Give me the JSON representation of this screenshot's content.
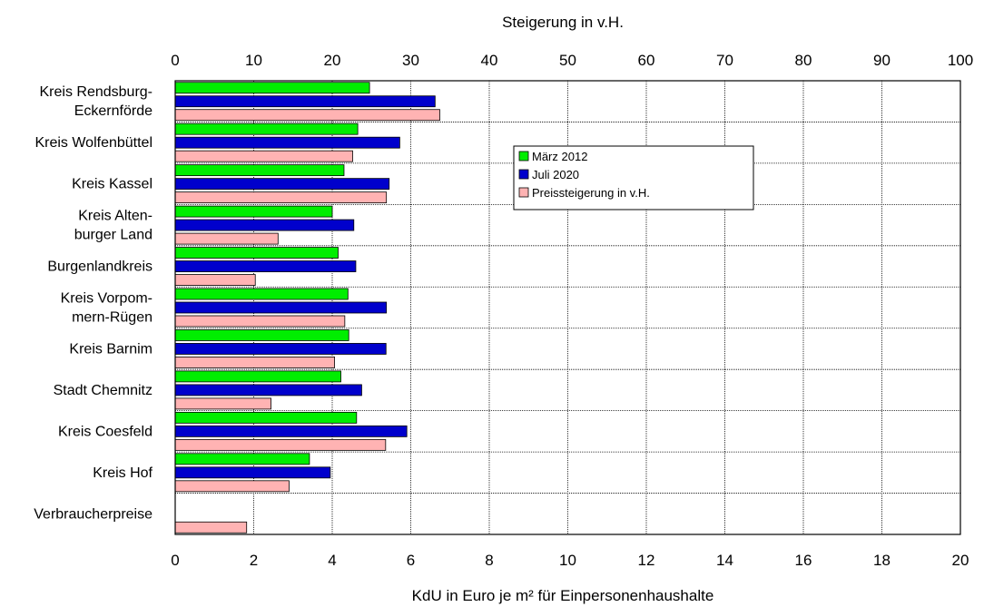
{
  "chart_data": {
    "type": "bar",
    "orientation": "horizontal",
    "top_axis_title": "Steigerung in v.H.",
    "bottom_axis_title": "KdU in Euro je m² für Einpersonenhaushalte",
    "top_axis": {
      "range": [
        0,
        100
      ],
      "ticks": [
        0,
        10,
        20,
        30,
        40,
        50,
        60,
        70,
        80,
        90,
        100
      ]
    },
    "bottom_axis": {
      "range": [
        0,
        20
      ],
      "ticks": [
        0,
        2,
        4,
        6,
        8,
        10,
        12,
        14,
        16,
        18,
        20
      ]
    },
    "grid": true,
    "legend_position": "upper-center",
    "categories": [
      [
        "Kreis Rendsburg-",
        "Eckernförde"
      ],
      [
        "Kreis Wolfenbüttel"
      ],
      [
        "Kreis Kassel"
      ],
      [
        "Kreis Alten-",
        "burger Land"
      ],
      [
        "Burgenlandkreis"
      ],
      [
        "Kreis Vorpom-",
        "mern-Rügen"
      ],
      [
        "Kreis Barnim"
      ],
      [
        "Stadt Chemnitz"
      ],
      [
        "Kreis Coesfeld"
      ],
      [
        "Kreis Hof"
      ],
      [
        "Verbraucherpreise"
      ]
    ],
    "series": [
      {
        "name": "März 2012",
        "axis": "bottom",
        "color": "#00ee00",
        "values": [
          4.95,
          4.65,
          4.3,
          4.0,
          4.15,
          4.4,
          4.42,
          4.22,
          4.62,
          3.42,
          null
        ]
      },
      {
        "name": "Juli 2020",
        "axis": "bottom",
        "color": "#0000cc",
        "values": [
          6.62,
          5.72,
          5.45,
          4.55,
          4.6,
          5.38,
          5.37,
          4.75,
          5.9,
          3.95,
          null
        ]
      },
      {
        "name": "Preissteigerung in v.H.",
        "axis": "top",
        "color": "#ffb3b3",
        "values": [
          33.7,
          22.6,
          26.9,
          13.1,
          10.2,
          21.6,
          20.3,
          12.2,
          26.8,
          14.5,
          9.1
        ]
      }
    ]
  }
}
